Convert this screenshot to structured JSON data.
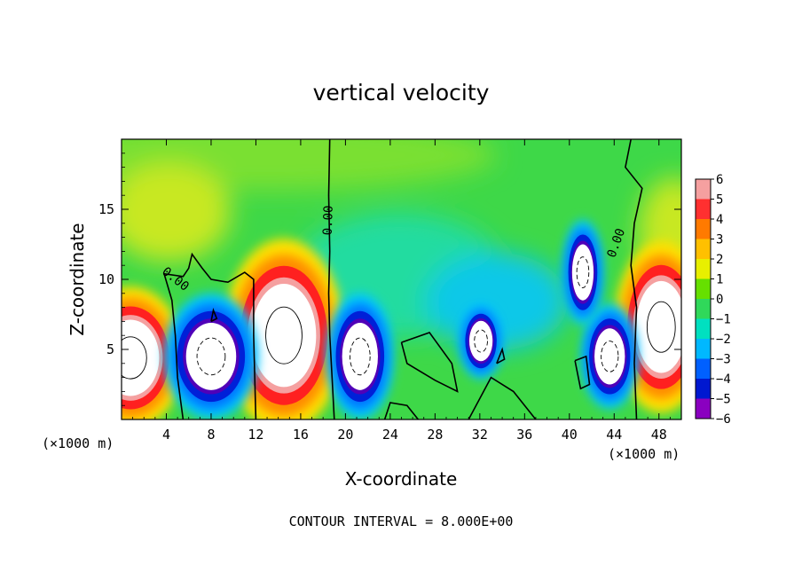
{
  "chart_data": {
    "type": "heatmap",
    "title": "vertical velocity",
    "xlabel": "X-coordinate",
    "ylabel": "Z-coordinate",
    "x_unit": "(×1000 m)",
    "xlim": [
      0,
      50
    ],
    "ylim": [
      0,
      20
    ],
    "x_ticks": [
      4,
      8,
      12,
      16,
      20,
      24,
      28,
      32,
      36,
      40,
      44,
      48
    ],
    "y_ticks": [
      5,
      10,
      15
    ],
    "colorbar_ticks": [
      6,
      5,
      4,
      3,
      2,
      1,
      0,
      -1,
      -2,
      -3,
      -4,
      -5,
      -6
    ],
    "colorbar_levels": [
      {
        "lo": 5,
        "hi": 6,
        "color": "#f5a0a0"
      },
      {
        "lo": 4,
        "hi": 5,
        "color": "#ff3030"
      },
      {
        "lo": 3,
        "hi": 4,
        "color": "#ff7a00"
      },
      {
        "lo": 2,
        "hi": 3,
        "color": "#ffc000"
      },
      {
        "lo": 1,
        "hi": 2,
        "color": "#e8ef00"
      },
      {
        "lo": 0,
        "hi": 1,
        "color": "#66e000"
      },
      {
        "lo": -1,
        "hi": 0,
        "color": "#30d85a"
      },
      {
        "lo": -2,
        "hi": -1,
        "color": "#00e0c0"
      },
      {
        "lo": -3,
        "hi": -2,
        "color": "#00b8ff"
      },
      {
        "lo": -4,
        "hi": -3,
        "color": "#0060ff"
      },
      {
        "lo": -5,
        "hi": -4,
        "color": "#0018d0"
      },
      {
        "lo": -6,
        "hi": -5,
        "color": "#8a00c0"
      }
    ],
    "contour_label": "0.00",
    "annotation": "CONTOUR INTERVAL = 8.000E+00",
    "updrafts": [
      {
        "x": 0.8,
        "z": 4.4,
        "rx": 3.2,
        "rz": 6.8
      },
      {
        "x": 14.5,
        "z": 6.0,
        "rx": 3.6,
        "rz": 9.2
      },
      {
        "x": 48.2,
        "z": 6.6,
        "rx": 2.8,
        "rz": 8.2
      }
    ],
    "downdrafts": [
      {
        "x": 8.0,
        "z": 4.5,
        "rx": 2.8,
        "rz": 6.0
      },
      {
        "x": 21.3,
        "z": 4.5,
        "rx": 2.0,
        "rz": 6.0
      },
      {
        "x": 32.1,
        "z": 5.6,
        "rx": 1.3,
        "rz": 3.6
      },
      {
        "x": 43.6,
        "z": 4.5,
        "rx": 1.7,
        "rz": 5.0
      },
      {
        "x": 41.2,
        "z": 10.5,
        "rx": 1.2,
        "rz": 5.0
      }
    ]
  }
}
